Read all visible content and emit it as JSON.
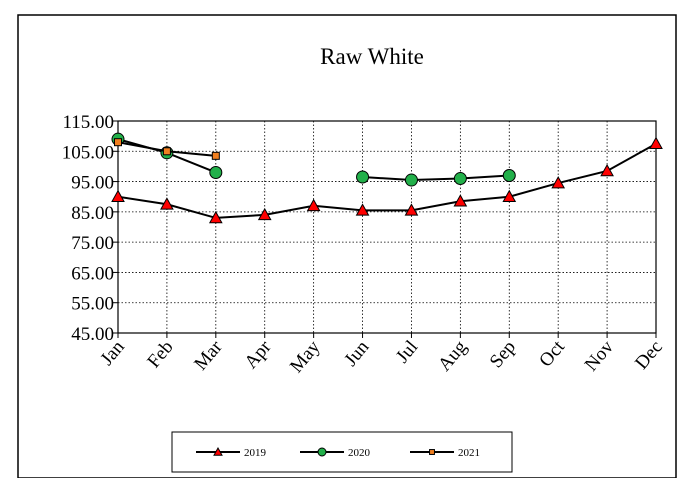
{
  "chart_data": {
    "type": "line",
    "title": "Raw White",
    "xlabel": "",
    "ylabel": "",
    "categories": [
      "Jan",
      "Feb",
      "Mar",
      "Apr",
      "May",
      "Jun",
      "Jul",
      "Aug",
      "Sep",
      "Oct",
      "Nov",
      "Dec"
    ],
    "ylim": [
      45.0,
      115.0
    ],
    "yticks": [
      "115.00",
      "105.00",
      "95.00",
      "85.00",
      "75.00",
      "65.00",
      "55.00",
      "45.00"
    ],
    "ytick_values": [
      115,
      105,
      95,
      85,
      75,
      65,
      55,
      45
    ],
    "grid": true,
    "legend_position": "bottom",
    "series": [
      {
        "name": "2019",
        "marker": "triangle",
        "color": "#ff0000",
        "values": [
          90.0,
          87.5,
          83.0,
          84.0,
          87.0,
          85.5,
          85.5,
          88.5,
          90.0,
          94.5,
          98.5,
          107.5
        ]
      },
      {
        "name": "2020",
        "marker": "circle",
        "color": "#22b04a",
        "values": [
          109.0,
          104.5,
          98.0,
          null,
          null,
          96.5,
          95.5,
          96.0,
          97.0,
          null,
          null,
          null
        ]
      },
      {
        "name": "2021",
        "marker": "square",
        "color": "#f07f20",
        "values": [
          108.0,
          105.0,
          103.5,
          null,
          null,
          null,
          null,
          null,
          null,
          null,
          null,
          null
        ]
      }
    ]
  }
}
